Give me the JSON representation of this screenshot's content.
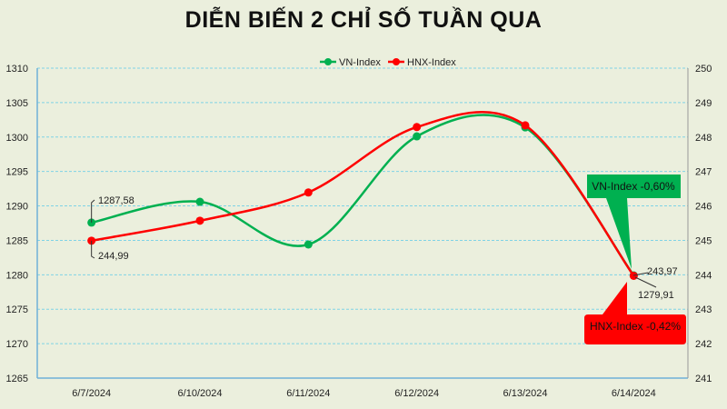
{
  "chart_data": {
    "type": "line",
    "title": "DIỄN BIẾN 2 CHỈ SỐ TUẦN QUA",
    "categories": [
      "6/7/2024",
      "6/10/2024",
      "6/11/2024",
      "6/12/2024",
      "6/13/2024",
      "6/14/2024"
    ],
    "series": [
      {
        "name": "VN-Index",
        "axis": "left",
        "color": "#00b050",
        "values": [
          1287.58,
          1290.6,
          1284.4,
          1300.1,
          1301.4,
          1279.91
        ]
      },
      {
        "name": "HNX-Index",
        "axis": "right",
        "color": "#ff0000",
        "values": [
          244.99,
          245.57,
          246.39,
          248.29,
          248.34,
          243.97
        ]
      }
    ],
    "left_axis": {
      "ylim": [
        1265,
        1310
      ],
      "ticks": [
        "1265",
        "1270",
        "1275",
        "1280",
        "1285",
        "1290",
        "1295",
        "1300",
        "1305",
        "1310"
      ]
    },
    "right_axis": {
      "ylim": [
        241,
        250
      ],
      "ticks": [
        "241",
        "242",
        "243",
        "244",
        "245",
        "246",
        "247",
        "248",
        "249",
        "250"
      ]
    },
    "smoothed": true,
    "grid": true,
    "legend_position": "top",
    "data_labels": {
      "vn_first": "1287,58",
      "hnx_first": "244,99",
      "hnx_last": "243,97",
      "vn_last": "1279,91"
    },
    "callouts": {
      "vn": {
        "text": "VN-Index -0,60%",
        "color": "#00b050"
      },
      "hnx": {
        "text": "HNX-Index -0,42%",
        "color": "#ff0000"
      }
    }
  }
}
